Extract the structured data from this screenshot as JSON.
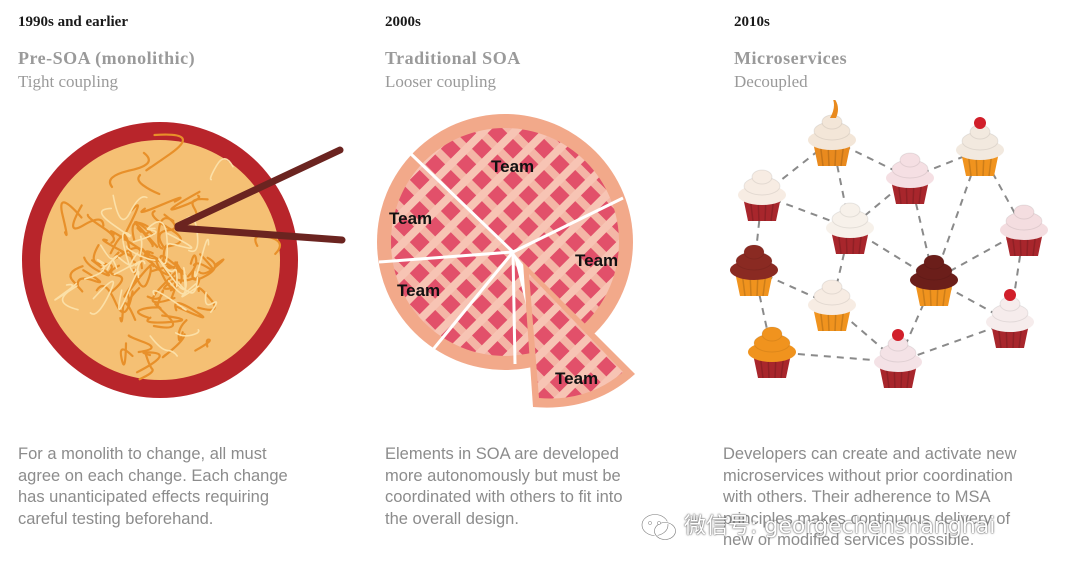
{
  "columns": [
    {
      "era": "1990s and earlier",
      "architecture": "Pre-SOA (monolithic)",
      "coupling": "Tight coupling",
      "illustration": "noodle-bowl",
      "description_lines": [
        "For a monolith to change, all must",
        "agree on each change. Each change",
        "has unanticipated effects requiring",
        "careful testing beforehand."
      ]
    },
    {
      "era": "2000s",
      "architecture": "Traditional SOA",
      "coupling": "Looser coupling",
      "illustration": "sliced-pie",
      "team_labels": [
        "Team",
        "Team",
        "Team",
        "Team",
        "Team"
      ],
      "description_lines": [
        "Elements in SOA are developed",
        "more autonomously but must be",
        "coordinated with others to fit into",
        "the overall design."
      ]
    },
    {
      "era": "2010s",
      "architecture": "Microservices",
      "coupling": "Decoupled",
      "illustration": "connected-cupcakes",
      "description_lines": [
        "Developers can create and activate new",
        "microservices without prior coordination",
        "with others. Their adherence to MSA",
        "principles makes continuous delivery of",
        "new or modified services possible."
      ]
    }
  ],
  "watermark": {
    "text": "微信号: georgechenshanghai",
    "icon": "wechat-icon"
  },
  "colors": {
    "bowl": "#b8252b",
    "noodle": "#f0a83c",
    "chopsticks": "#6b2420",
    "pie_crust": "#f2a98a",
    "pie_filling": "#e0506a",
    "cupcake_wrapper": "#a8262c",
    "cupcake_orange": "#f0931e"
  }
}
